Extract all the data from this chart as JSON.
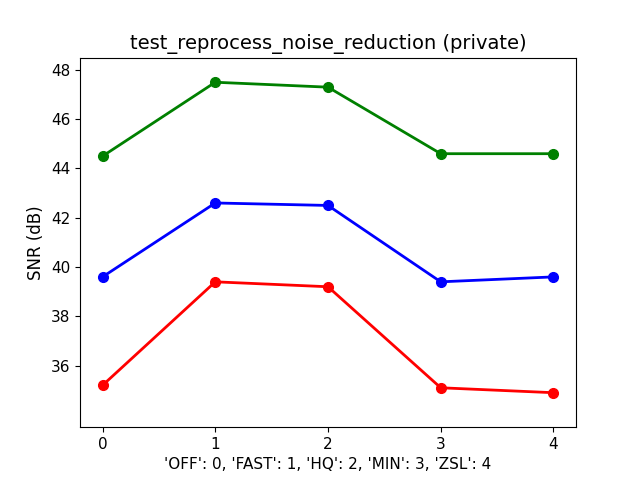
{
  "title": "test_reprocess_noise_reduction (private)",
  "xlabel": "'OFF': 0, 'FAST': 1, 'HQ': 2, 'MIN': 3, 'ZSL': 4",
  "ylabel": "SNR (dB)",
  "x": [
    0,
    1,
    2,
    3,
    4
  ],
  "series": [
    {
      "color": "green",
      "values": [
        44.5,
        47.5,
        47.3,
        44.6,
        44.6
      ]
    },
    {
      "color": "blue",
      "values": [
        39.6,
        42.6,
        42.5,
        39.4,
        39.6
      ]
    },
    {
      "color": "red",
      "values": [
        35.2,
        39.4,
        39.2,
        35.1,
        34.9
      ]
    }
  ],
  "ylim": [
    33.5,
    48.5
  ],
  "yticks": [
    36,
    38,
    40,
    42,
    44,
    46,
    48
  ],
  "xticks": [
    0,
    1,
    2,
    3,
    4
  ],
  "marker": "o",
  "markersize": 7,
  "linewidth": 2,
  "title_fontsize": 14,
  "label_fontsize": 12,
  "tick_fontsize": 11,
  "xlabel_fontsize": 11
}
